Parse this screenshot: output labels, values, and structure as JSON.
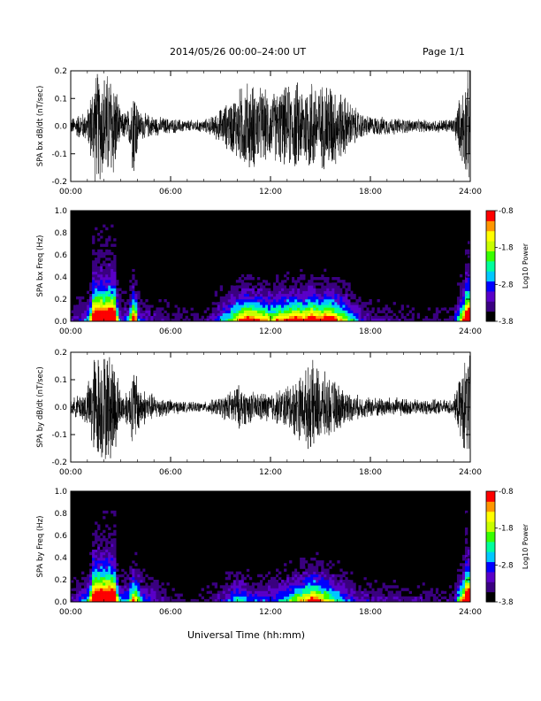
{
  "header": {
    "title": "2014/05/26  00:00–24:00 UT",
    "page": "Page 1/1"
  },
  "footer": {
    "xlabel": "Universal Time (hh:mm)"
  },
  "colors": {
    "colorbar": [
      "#000000",
      "#3a0080",
      "#5a00c8",
      "#0000ff",
      "#00c8ff",
      "#00ff9c",
      "#38ff00",
      "#c8ff00",
      "#ffff00",
      "#ff9600",
      "#ff0000"
    ]
  },
  "chart_data": [
    {
      "type": "line",
      "ylabel": "SPA bx dB/dt (nT/sec)",
      "x_ticks": [
        "00:00",
        "06:00",
        "12:00",
        "18:00",
        "24:00"
      ],
      "y_ticks": [
        "-0.2",
        "-0.1",
        "0.0",
        "0.1",
        "0.2"
      ],
      "xlim": [
        0,
        24
      ],
      "ylim": [
        -0.2,
        0.2
      ],
      "activity": [
        {
          "hour": 0.0,
          "amp": 0.03
        },
        {
          "hour": 0.5,
          "amp": 0.05
        },
        {
          "hour": 1.0,
          "amp": 0.06
        },
        {
          "hour": 1.4,
          "amp": 0.22
        },
        {
          "hour": 1.8,
          "amp": 0.22
        },
        {
          "hour": 2.2,
          "amp": 0.22
        },
        {
          "hour": 2.6,
          "amp": 0.22
        },
        {
          "hour": 3.0,
          "amp": 0.05
        },
        {
          "hour": 3.5,
          "amp": 0.07
        },
        {
          "hour": 3.8,
          "amp": 0.22
        },
        {
          "hour": 4.1,
          "amp": 0.06
        },
        {
          "hour": 5.0,
          "amp": 0.04
        },
        {
          "hour": 6.0,
          "amp": 0.03
        },
        {
          "hour": 7.0,
          "amp": 0.025
        },
        {
          "hour": 8.0,
          "amp": 0.025
        },
        {
          "hour": 8.5,
          "amp": 0.04
        },
        {
          "hour": 9.0,
          "amp": 0.07
        },
        {
          "hour": 9.5,
          "amp": 0.1
        },
        {
          "hour": 10.0,
          "amp": 0.14
        },
        {
          "hour": 10.5,
          "amp": 0.18
        },
        {
          "hour": 11.0,
          "amp": 0.17
        },
        {
          "hour": 11.5,
          "amp": 0.15
        },
        {
          "hour": 12.0,
          "amp": 0.13
        },
        {
          "hour": 12.5,
          "amp": 0.15
        },
        {
          "hour": 13.0,
          "amp": 0.16
        },
        {
          "hour": 13.5,
          "amp": 0.18
        },
        {
          "hour": 14.0,
          "amp": 0.17
        },
        {
          "hour": 14.5,
          "amp": 0.2
        },
        {
          "hour": 15.0,
          "amp": 0.16
        },
        {
          "hour": 15.5,
          "amp": 0.2
        },
        {
          "hour": 16.0,
          "amp": 0.15
        },
        {
          "hour": 16.5,
          "amp": 0.12
        },
        {
          "hour": 17.0,
          "amp": 0.08
        },
        {
          "hour": 17.5,
          "amp": 0.05
        },
        {
          "hour": 18.0,
          "amp": 0.04
        },
        {
          "hour": 19.0,
          "amp": 0.035
        },
        {
          "hour": 20.0,
          "amp": 0.03
        },
        {
          "hour": 21.0,
          "amp": 0.025
        },
        {
          "hour": 22.0,
          "amp": 0.025
        },
        {
          "hour": 23.0,
          "amp": 0.03
        },
        {
          "hour": 23.8,
          "amp": 0.22
        },
        {
          "hour": 24.0,
          "amp": 0.22
        }
      ]
    },
    {
      "type": "heatmap",
      "ylabel": "SPA bx Freq (Hz)",
      "colorbar_label": "Log10 Power",
      "colorbar_ticks": [
        "-0.8",
        "-1.8",
        "-2.8",
        "-3.8"
      ],
      "x_ticks": [
        "00:00",
        "06:00",
        "12:00",
        "18:00",
        "24:00"
      ],
      "y_ticks": [
        "0.0",
        "0.2",
        "0.4",
        "0.6",
        "0.8",
        "1.0"
      ],
      "xlim": [
        0,
        24
      ],
      "ylim": [
        0,
        1
      ],
      "clim": [
        -3.8,
        -0.8
      ],
      "grid": false
    },
    {
      "type": "line",
      "ylabel": "SPA by dB/dt (nT/sec)",
      "x_ticks": [
        "00:00",
        "06:00",
        "12:00",
        "18:00",
        "24:00"
      ],
      "y_ticks": [
        "-0.2",
        "-0.1",
        "0.0",
        "0.1",
        "0.2"
      ],
      "xlim": [
        0,
        24
      ],
      "ylim": [
        -0.2,
        0.2
      ],
      "activity": [
        {
          "hour": 0.0,
          "amp": 0.03
        },
        {
          "hour": 0.5,
          "amp": 0.05
        },
        {
          "hour": 1.0,
          "amp": 0.08
        },
        {
          "hour": 1.4,
          "amp": 0.22
        },
        {
          "hour": 1.8,
          "amp": 0.22
        },
        {
          "hour": 2.2,
          "amp": 0.22
        },
        {
          "hour": 2.6,
          "amp": 0.22
        },
        {
          "hour": 3.0,
          "amp": 0.06
        },
        {
          "hour": 3.5,
          "amp": 0.08
        },
        {
          "hour": 3.8,
          "amp": 0.17
        },
        {
          "hour": 4.2,
          "amp": 0.08
        },
        {
          "hour": 5.0,
          "amp": 0.05
        },
        {
          "hour": 6.0,
          "amp": 0.03
        },
        {
          "hour": 7.0,
          "amp": 0.02
        },
        {
          "hour": 8.0,
          "amp": 0.02
        },
        {
          "hour": 9.0,
          "amp": 0.04
        },
        {
          "hour": 9.5,
          "amp": 0.06
        },
        {
          "hour": 10.0,
          "amp": 0.09
        },
        {
          "hour": 10.5,
          "amp": 0.07
        },
        {
          "hour": 11.0,
          "amp": 0.06
        },
        {
          "hour": 12.0,
          "amp": 0.06
        },
        {
          "hour": 12.5,
          "amp": 0.07
        },
        {
          "hour": 13.0,
          "amp": 0.09
        },
        {
          "hour": 13.5,
          "amp": 0.12
        },
        {
          "hour": 14.0,
          "amp": 0.14
        },
        {
          "hour": 14.5,
          "amp": 0.18
        },
        {
          "hour": 15.0,
          "amp": 0.15
        },
        {
          "hour": 15.5,
          "amp": 0.12
        },
        {
          "hour": 16.0,
          "amp": 0.1
        },
        {
          "hour": 16.5,
          "amp": 0.07
        },
        {
          "hour": 17.0,
          "amp": 0.05
        },
        {
          "hour": 18.0,
          "amp": 0.04
        },
        {
          "hour": 19.0,
          "amp": 0.04
        },
        {
          "hour": 20.0,
          "amp": 0.035
        },
        {
          "hour": 21.0,
          "amp": 0.03
        },
        {
          "hour": 22.0,
          "amp": 0.03
        },
        {
          "hour": 23.0,
          "amp": 0.03
        },
        {
          "hour": 23.8,
          "amp": 0.22
        },
        {
          "hour": 24.0,
          "amp": 0.22
        }
      ]
    },
    {
      "type": "heatmap",
      "ylabel": "SPA by Freq (Hz)",
      "colorbar_label": "Log10 Power",
      "colorbar_ticks": [
        "-0.8",
        "-1.8",
        "-2.8",
        "-3.8"
      ],
      "x_ticks": [
        "00:00",
        "06:00",
        "12:00",
        "18:00",
        "24:00"
      ],
      "y_ticks": [
        "0.0",
        "0.2",
        "0.4",
        "0.6",
        "0.8",
        "1.0"
      ],
      "xlim": [
        0,
        24
      ],
      "ylim": [
        0,
        1
      ],
      "clim": [
        -3.8,
        -0.8
      ],
      "grid": false
    }
  ]
}
